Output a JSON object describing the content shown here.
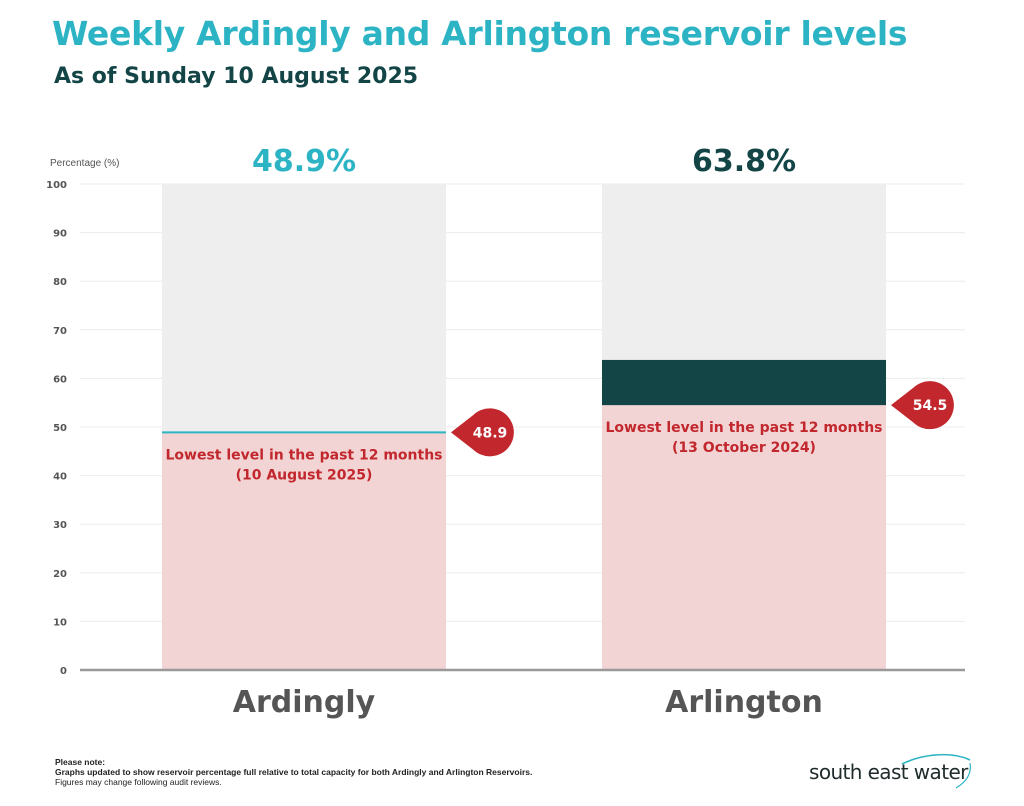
{
  "header": {
    "title": "Weekly Ardingly and Arlington reservoir levels",
    "subtitle": "As of Sunday 10 August 2025"
  },
  "colors": {
    "title": "#2cb4c5",
    "subtitle": "#134547",
    "ardingly": "#2cb4c5",
    "arlington": "#134547",
    "empty": "#eeeeee",
    "lowest_fill": "#f3d4d4",
    "lowest_marker": "#c1272d",
    "lowest_text": "#c1272d",
    "axis_text": "#555555",
    "category_text": "#555555"
  },
  "chart_data": {
    "type": "bar",
    "ylabel": "Percentage (%)",
    "ylim": [
      0,
      100
    ],
    "yticks": [
      0,
      10,
      20,
      30,
      40,
      50,
      60,
      70,
      80,
      90,
      100
    ],
    "grid": true,
    "categories": [
      "Ardingly",
      "Arlington"
    ],
    "values": [
      48.9,
      63.8
    ],
    "value_labels": [
      "48.9%",
      "63.8%"
    ],
    "lowest": [
      {
        "value": 48.9,
        "marker_label": "48.9",
        "line1": "Lowest level in the past 12 months",
        "line2": "(10 August 2025)"
      },
      {
        "value": 54.5,
        "marker_label": "54.5",
        "line1": "Lowest level in the past 12 months",
        "line2": "(13 October 2024)"
      }
    ]
  },
  "footer": {
    "note_heading": "Please note:",
    "note_line1": "Graphs updated to show reservoir percentage full relative to total capacity for both Ardingly and Arlington Reservoirs.",
    "note_line2": "Figures may change following audit reviews.",
    "logo_text": "south east water"
  }
}
